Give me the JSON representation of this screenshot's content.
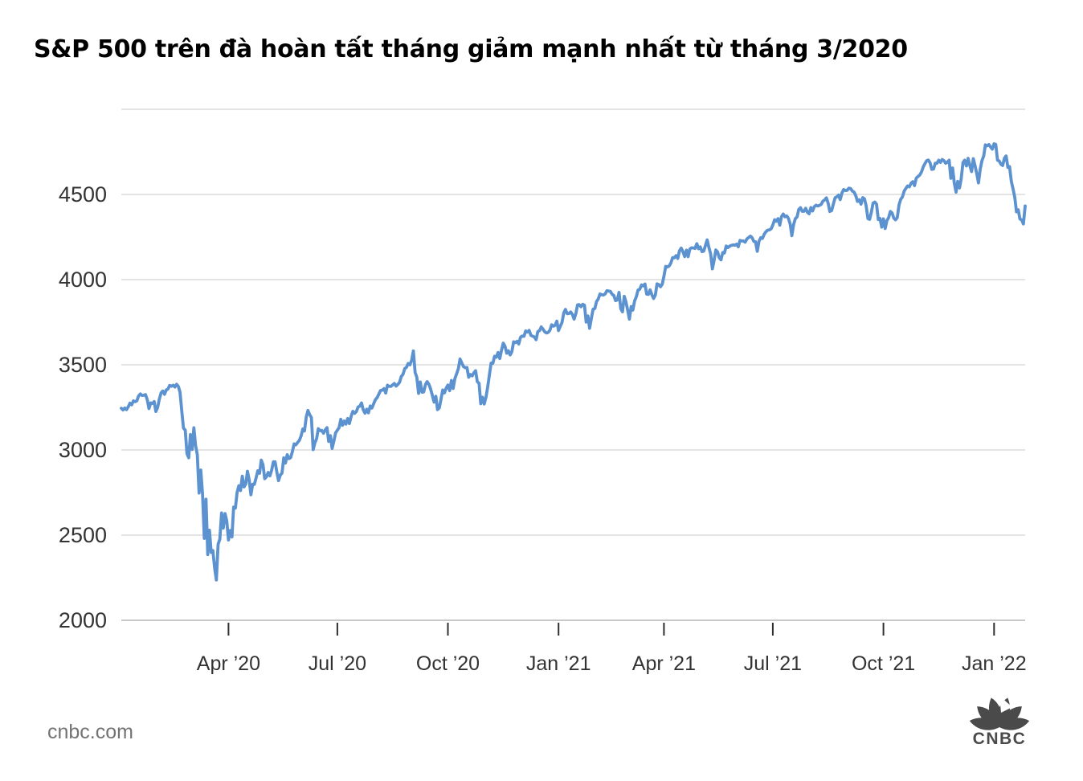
{
  "footer": {
    "source": "cnbc.com",
    "logo_text": "CNBC"
  },
  "chart_data": {
    "type": "line",
    "title": "S&P 500 trên đà hoàn tất tháng giảm mạnh nhất từ tháng 3/2020",
    "ylabel": "",
    "xlabel": "",
    "ylim": [
      2000,
      5000
    ],
    "ygrid": [
      2000,
      2500,
      3000,
      3500,
      4000,
      4500,
      5000
    ],
    "yticks_labeled": [
      "2000",
      "2500",
      "3000",
      "3500",
      "4000",
      "4500"
    ],
    "grid": "horizontal-only",
    "legend": "none",
    "colors": {
      "line": "#5b92cf",
      "grid": "#dcdcdc",
      "axis": "#c8c8c8",
      "tick": "#2f2f2f",
      "label": "#333333",
      "logo": "#4a4a4a"
    },
    "xticks": [
      {
        "label": "Apr ’20",
        "i": 62
      },
      {
        "label": "Jul ’20",
        "i": 125
      },
      {
        "label": "Oct ’20",
        "i": 189
      },
      {
        "label": "Jan ’21",
        "i": 253
      },
      {
        "label": "Apr ’21",
        "i": 314
      },
      {
        "label": "Jul ’21",
        "i": 377
      },
      {
        "label": "Oct ’21",
        "i": 441
      },
      {
        "label": "Jan ’22",
        "i": 505
      }
    ],
    "values": [
      3245,
      3235,
      3246,
      3237,
      3253,
      3275,
      3265,
      3288,
      3283,
      3289,
      3317,
      3329,
      3320,
      3321,
      3325,
      3295,
      3243,
      3276,
      3273,
      3284,
      3226,
      3249,
      3298,
      3335,
      3346,
      3327,
      3352,
      3358,
      3379,
      3374,
      3380,
      3370,
      3386,
      3373,
      3338,
      3226,
      3128,
      3116,
      2979,
      2954,
      3090,
      3003,
      3130,
      3024,
      2972,
      2747,
      2882,
      2741,
      2481,
      2711,
      2386,
      2529,
      2398,
      2409,
      2305,
      2237,
      2447,
      2476,
      2630,
      2541,
      2627,
      2585,
      2471,
      2527,
      2489,
      2664,
      2659,
      2750,
      2790,
      2762,
      2846,
      2783,
      2800,
      2875,
      2823,
      2737,
      2799,
      2798,
      2837,
      2878,
      2863,
      2940,
      2912,
      2831,
      2843,
      2868,
      2848,
      2881,
      2930,
      2930,
      2870,
      2820,
      2853,
      2864,
      2954,
      2923,
      2972,
      2949,
      2955,
      2992,
      3036,
      3030,
      3044,
      3056,
      3081,
      3123,
      3112,
      3194,
      3232,
      3207,
      3190,
      3002,
      3041,
      3067,
      3125,
      3113,
      3115,
      3098,
      3118,
      3131,
      3050,
      3084,
      3009,
      3053,
      3100,
      3116,
      3130,
      3180,
      3145,
      3170,
      3152,
      3185,
      3155,
      3198,
      3227,
      3215,
      3225,
      3252,
      3257,
      3276,
      3236,
      3216,
      3239,
      3218,
      3258,
      3246,
      3271,
      3295,
      3307,
      3328,
      3349,
      3351,
      3360,
      3334,
      3380,
      3373,
      3373,
      3382,
      3390,
      3375,
      3385,
      3397,
      3431,
      3444,
      3478,
      3485,
      3508,
      3500,
      3527,
      3581,
      3455,
      3427,
      3332,
      3399,
      3339,
      3341,
      3384,
      3401,
      3385,
      3357,
      3319,
      3281,
      3315,
      3237,
      3247,
      3298,
      3352,
      3335,
      3363,
      3381,
      3348,
      3408,
      3361,
      3419,
      3447,
      3477,
      3534,
      3511,
      3489,
      3483,
      3484,
      3427,
      3443,
      3435,
      3453,
      3465,
      3401,
      3391,
      3271,
      3310,
      3270,
      3310,
      3369,
      3443,
      3510,
      3509,
      3550,
      3545,
      3572,
      3537,
      3585,
      3627,
      3610,
      3568,
      3582,
      3558,
      3577,
      3635,
      3630,
      3638,
      3622,
      3662,
      3669,
      3667,
      3699,
      3692,
      3702,
      3673,
      3668,
      3663,
      3647,
      3695,
      3701,
      3722,
      3709,
      3694,
      3687,
      3690,
      3703,
      3735,
      3727,
      3732,
      3756,
      3701,
      3727,
      3748,
      3804,
      3825,
      3800,
      3801,
      3810,
      3796,
      3768,
      3799,
      3852,
      3853,
      3841,
      3855,
      3850,
      3751,
      3787,
      3714,
      3773,
      3826,
      3830,
      3871,
      3887,
      3916,
      3911,
      3910,
      3916,
      3935,
      3933,
      3931,
      3914,
      3907,
      3877,
      3881,
      3925,
      3829,
      3811,
      3902,
      3870,
      3820,
      3768,
      3842,
      3821,
      3875,
      3899,
      3939,
      3943,
      3969,
      3963,
      3974,
      3915,
      3913,
      3940,
      3911,
      3889,
      3909,
      3975,
      3971,
      3958,
      3973,
      4020,
      4078,
      4074,
      4080,
      4097,
      4129,
      4128,
      4141,
      4124,
      4170,
      4185,
      4163,
      4135,
      4173,
      4135,
      4180,
      4187,
      4186,
      4183,
      4211,
      4181,
      4192,
      4164,
      4167,
      4201,
      4233,
      4188,
      4152,
      4063,
      4112,
      4174,
      4163,
      4128,
      4116,
      4159,
      4156,
      4197,
      4188,
      4196,
      4201,
      4204,
      4202,
      4208,
      4193,
      4230,
      4227,
      4227,
      4220,
      4239,
      4247,
      4255,
      4246,
      4224,
      4222,
      4166,
      4225,
      4246,
      4242,
      4266,
      4281,
      4290,
      4292,
      4298,
      4320,
      4352,
      4343,
      4358,
      4320,
      4370,
      4385,
      4369,
      4374,
      4360,
      4327,
      4258,
      4323,
      4358,
      4368,
      4412,
      4422,
      4401,
      4401,
      4419,
      4395,
      4387,
      4423,
      4403,
      4429,
      4437,
      4432,
      4436,
      4442,
      4461,
      4468,
      4480,
      4448,
      4400,
      4405,
      4442,
      4480,
      4486,
      4496,
      4470,
      4509,
      4529,
      4523,
      4524,
      4537,
      4535,
      4520,
      4514,
      4493,
      4459,
      4469,
      4443,
      4481,
      4474,
      4433,
      4358,
      4354,
      4396,
      4449,
      4455,
      4443,
      4353,
      4359,
      4308,
      4357,
      4300,
      4346,
      4364,
      4400,
      4391,
      4361,
      4351,
      4364,
      4438,
      4471,
      4486,
      4520,
      4536,
      4550,
      4545,
      4566,
      4575,
      4552,
      4596,
      4605,
      4614,
      4631,
      4661,
      4680,
      4698,
      4702,
      4685,
      4647,
      4649,
      4683,
      4683,
      4701,
      4688,
      4705,
      4698,
      4683,
      4690,
      4701,
      4595,
      4655,
      4567,
      4513,
      4577,
      4538,
      4592,
      4687,
      4701,
      4667,
      4712,
      4669,
      4634,
      4710,
      4669,
      4621,
      4568,
      4649,
      4697,
      4726,
      4791,
      4786,
      4793,
      4779,
      4766,
      4797,
      4794,
      4701,
      4696,
      4677,
      4670,
      4713,
      4726,
      4659,
      4663,
      4577,
      4533,
      4483,
      4398,
      4410,
      4356,
      4350,
      4327,
      4432
    ]
  }
}
